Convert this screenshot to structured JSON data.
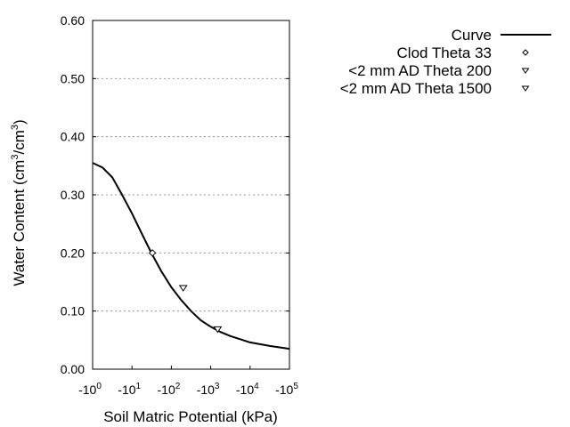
{
  "chart_data": {
    "type": "line",
    "title": "",
    "xlabel": "Soil Matric Potential (kPa)",
    "ylabel": "Water Content (cm3/cm3)",
    "ylabel_parts": {
      "a": "Water Content (cm",
      "sup1": "3",
      "b": "/cm",
      "sup2": "3",
      "c": ")"
    },
    "x_scale": "log (negative)",
    "xlim": [
      -1,
      -100000
    ],
    "ylim": [
      0,
      0.6
    ],
    "x_ticks": [
      {
        "base": "-10",
        "exp": "0",
        "value": -1
      },
      {
        "base": "-10",
        "exp": "1",
        "value": -10
      },
      {
        "base": "-10",
        "exp": "2",
        "value": -100
      },
      {
        "base": "-10",
        "exp": "3",
        "value": -1000
      },
      {
        "base": "-10",
        "exp": "4",
        "value": -10000
      },
      {
        "base": "-10",
        "exp": "5",
        "value": -100000
      }
    ],
    "y_ticks": [
      "0.00",
      "0.10",
      "0.20",
      "0.30",
      "0.40",
      "0.50",
      "0.60"
    ],
    "grid": "horizontal dotted",
    "legend_position": "top-right",
    "series": [
      {
        "name": "Curve",
        "type": "line",
        "color": "#000000",
        "x": [
          -1,
          -1.78,
          -3.16,
          -5.62,
          -10,
          -17.8,
          -31.6,
          -56.2,
          -100,
          -178,
          -316,
          -562,
          -1000,
          -1778,
          -3162,
          -10000,
          -31623,
          -100000
        ],
        "y": [
          0.355,
          0.347,
          0.33,
          0.3,
          0.268,
          0.233,
          0.199,
          0.168,
          0.141,
          0.119,
          0.1,
          0.084,
          0.073,
          0.064,
          0.057,
          0.046,
          0.04,
          0.035
        ]
      },
      {
        "name": "Clod Theta 33",
        "type": "scatter",
        "marker": "diamond",
        "x": [
          -33
        ],
        "y": [
          0.2
        ]
      },
      {
        "name": "<2 mm AD Theta 200",
        "type": "scatter",
        "marker": "triangle-down",
        "x": [
          -200
        ],
        "y": [
          0.14
        ]
      },
      {
        "name": "<2 mm AD Theta 1500",
        "type": "scatter",
        "marker": "triangle-down",
        "x": [
          -1500
        ],
        "y": [
          0.069
        ]
      }
    ]
  }
}
